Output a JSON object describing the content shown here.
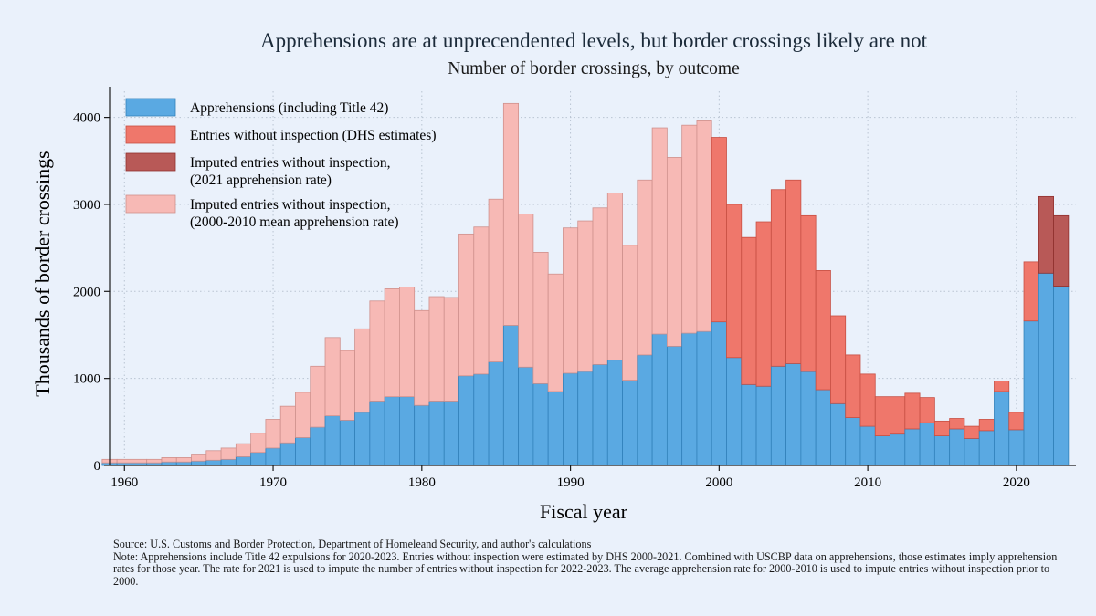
{
  "chart_data": {
    "type": "bar",
    "stacked": true,
    "title": "Apprehensions are at unprecendented levels, but border crossings likely are not",
    "subtitle": "Number of border crossings, by outcome",
    "xlabel": "Fiscal year",
    "ylabel": "Thousands of border crossings",
    "xlim": [
      1959,
      2024
    ],
    "ylim": [
      0,
      4300
    ],
    "xticks": [
      1960,
      1970,
      1980,
      1990,
      2000,
      2010,
      2020
    ],
    "yticks": [
      0,
      1000,
      2000,
      3000,
      4000
    ],
    "grid": true,
    "legend_position": "top-left",
    "x": [
      1959,
      1960,
      1961,
      1962,
      1963,
      1964,
      1965,
      1966,
      1967,
      1968,
      1969,
      1970,
      1971,
      1972,
      1973,
      1974,
      1975,
      1976,
      1977,
      1978,
      1979,
      1980,
      1981,
      1982,
      1983,
      1984,
      1985,
      1986,
      1987,
      1988,
      1989,
      1990,
      1991,
      1992,
      1993,
      1994,
      1995,
      1996,
      1997,
      1998,
      1999,
      2000,
      2001,
      2002,
      2003,
      2004,
      2005,
      2006,
      2007,
      2008,
      2009,
      2010,
      2011,
      2012,
      2013,
      2014,
      2015,
      2016,
      2017,
      2018,
      2019,
      2020,
      2021,
      2022,
      2023
    ],
    "series": [
      {
        "name": "Apprehensions (including Title 42)",
        "color": "#5aa9e2",
        "values": [
          30,
          30,
          30,
          30,
          40,
          40,
          50,
          60,
          70,
          100,
          150,
          200,
          260,
          320,
          440,
          570,
          520,
          610,
          740,
          790,
          790,
          690,
          740,
          740,
          1030,
          1050,
          1190,
          1610,
          1130,
          940,
          850,
          1060,
          1080,
          1160,
          1210,
          980,
          1270,
          1510,
          1370,
          1520,
          1540,
          1650,
          1240,
          930,
          910,
          1140,
          1170,
          1080,
          870,
          710,
          550,
          450,
          340,
          360,
          420,
          490,
          340,
          420,
          310,
          400,
          850,
          410,
          1660,
          2210,
          2060
        ]
      },
      {
        "name": "Entries without inspection (DHS estimates)",
        "color": "#ef776b",
        "values": [
          0,
          0,
          0,
          0,
          0,
          0,
          0,
          0,
          0,
          0,
          0,
          0,
          0,
          0,
          0,
          0,
          0,
          0,
          0,
          0,
          0,
          0,
          0,
          0,
          0,
          0,
          0,
          0,
          0,
          0,
          0,
          0,
          0,
          0,
          0,
          0,
          0,
          0,
          0,
          0,
          0,
          2120,
          1760,
          1690,
          1890,
          2030,
          2110,
          1790,
          1370,
          1010,
          720,
          600,
          450,
          430,
          410,
          290,
          170,
          120,
          140,
          130,
          120,
          200,
          680,
          0,
          0
        ]
      },
      {
        "name": "Imputed entries without inspection, (2021 apprehension rate)",
        "color": "#b85957",
        "values": [
          0,
          0,
          0,
          0,
          0,
          0,
          0,
          0,
          0,
          0,
          0,
          0,
          0,
          0,
          0,
          0,
          0,
          0,
          0,
          0,
          0,
          0,
          0,
          0,
          0,
          0,
          0,
          0,
          0,
          0,
          0,
          0,
          0,
          0,
          0,
          0,
          0,
          0,
          0,
          0,
          0,
          0,
          0,
          0,
          0,
          0,
          0,
          0,
          0,
          0,
          0,
          0,
          0,
          0,
          0,
          0,
          0,
          0,
          0,
          0,
          0,
          0,
          0,
          880,
          810
        ]
      },
      {
        "name": "Imputed entries without inspection, (2000-2010 mean apprehension rate)",
        "color": "#f7b9b5",
        "values": [
          40,
          40,
          40,
          40,
          50,
          50,
          70,
          110,
          130,
          150,
          220,
          330,
          420,
          520,
          700,
          900,
          800,
          960,
          1150,
          1240,
          1260,
          1090,
          1200,
          1190,
          1630,
          1690,
          1870,
          2550,
          1760,
          1510,
          1350,
          1670,
          1730,
          1800,
          1920,
          1550,
          2010,
          2370,
          2170,
          2390,
          2420,
          0,
          0,
          0,
          0,
          0,
          0,
          0,
          0,
          0,
          0,
          0,
          0,
          0,
          0,
          0,
          0,
          0,
          0,
          0,
          0,
          0,
          0,
          0,
          0
        ]
      }
    ],
    "legend": [
      {
        "line1": "Apprehensions (including Title 42)",
        "line2": "",
        "color": "#5aa9e2"
      },
      {
        "line1": "Entries without inspection (DHS estimates)",
        "line2": "",
        "color": "#ef776b"
      },
      {
        "line1": "Imputed entries without inspection,",
        "line2": "(2021 apprehension rate)",
        "color": "#b85957"
      },
      {
        "line1": "Imputed entries without inspection,",
        "line2": "(2000-2010 mean apprehension rate)",
        "color": "#f7b9b5"
      }
    ]
  },
  "notes": {
    "source": "Source: U.S. Customs and Border Protection, Department of Homeleand Security, and author's calculations",
    "note": "Note: Apprehensions include Title 42 expulsions for 2020-2023. Entries without inspection were estimated by DHS 2000-2021. Combined with USCBP data on apprehensions, those estimates imply apprehension rates for those year. The rate for 2021 is used to impute the number of entries without inspection for 2022-2023. The average apprehension rate for 2000-2010 is used to impute entries without inspection prior to 2000."
  }
}
